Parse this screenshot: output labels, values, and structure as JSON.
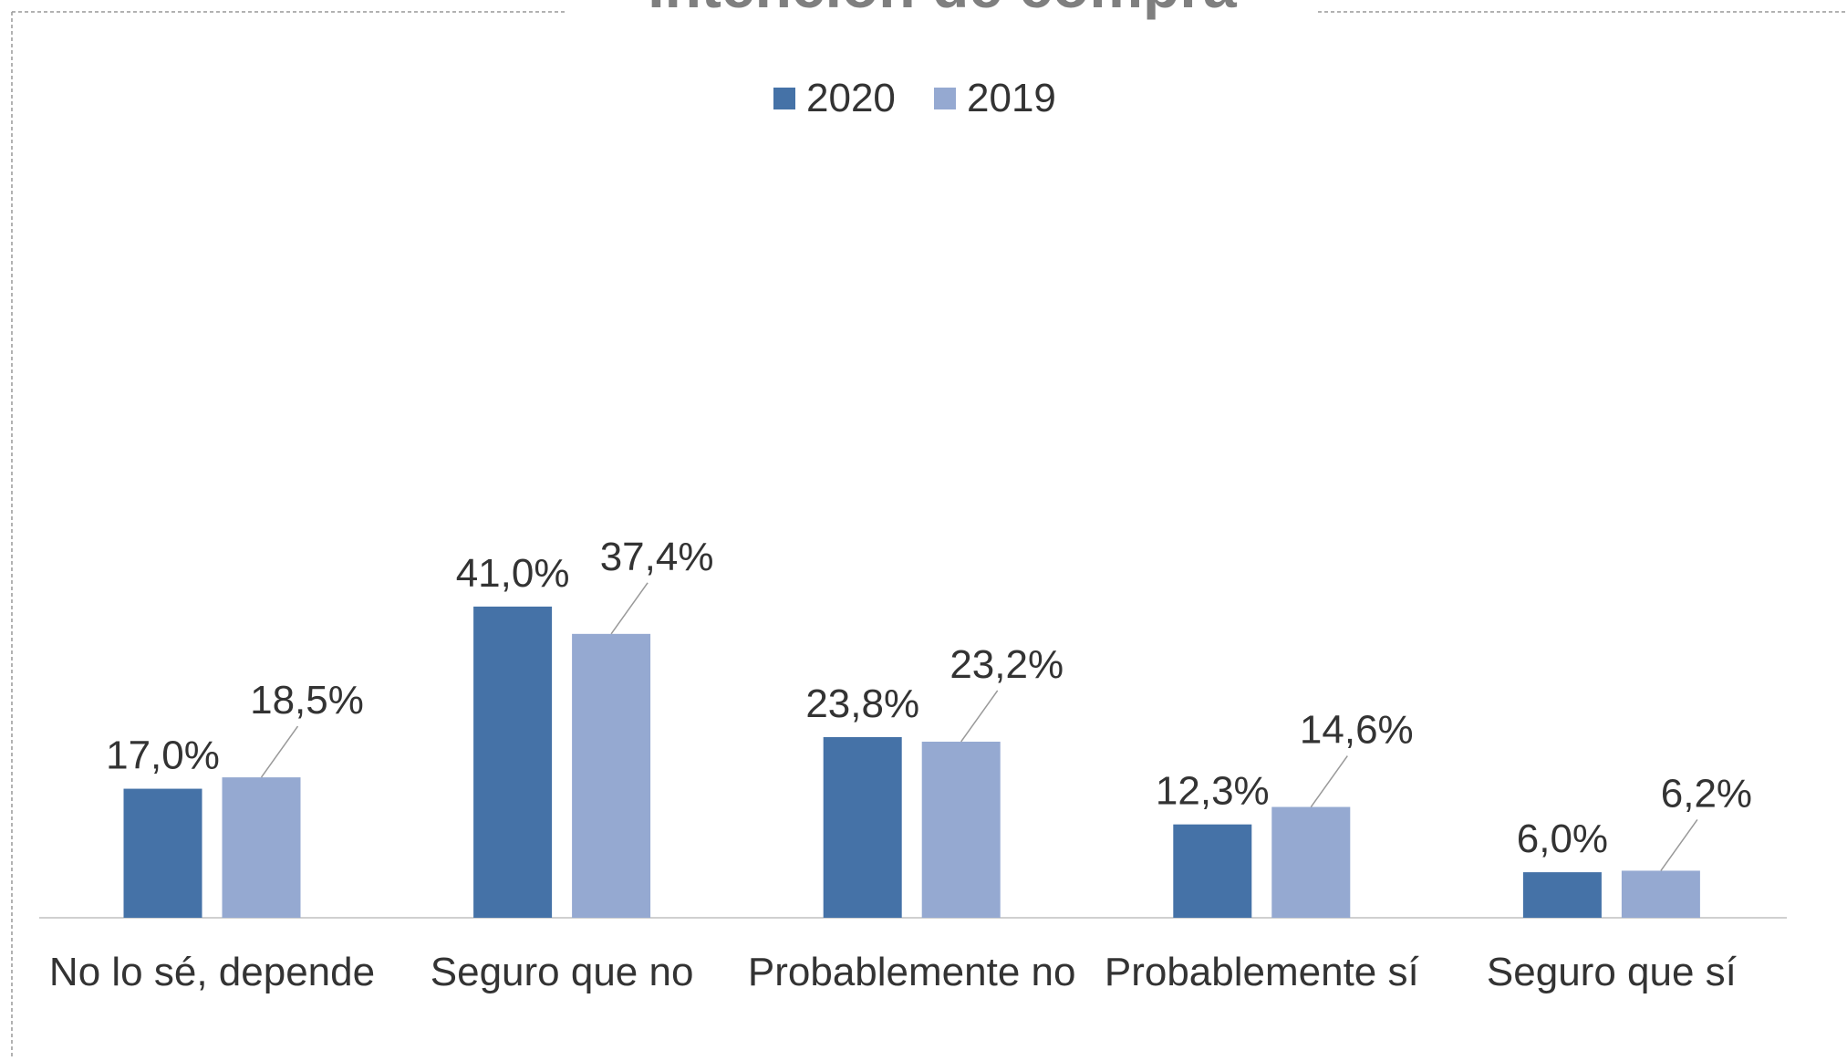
{
  "chart_data": {
    "type": "bar",
    "title": "Intención de compra",
    "categories": [
      "No lo sé, depende",
      "Seguro que no",
      "Probablemente no",
      "Probablemente sí",
      "Seguro que sí"
    ],
    "series": [
      {
        "name": "2020",
        "color": "#4572a7",
        "values": [
          17.0,
          41.0,
          23.8,
          12.3,
          6.0
        ],
        "value_labels": [
          "17,0%",
          "41,0%",
          "23,8%",
          "12,3%",
          "6,0%"
        ]
      },
      {
        "name": "2019",
        "color": "#95a9d1",
        "values": [
          18.5,
          37.4,
          23.2,
          14.6,
          6.2
        ],
        "value_labels": [
          "18,5%",
          "37,4%",
          "23,2%",
          "14,6%",
          "6,2%"
        ]
      }
    ]
  }
}
